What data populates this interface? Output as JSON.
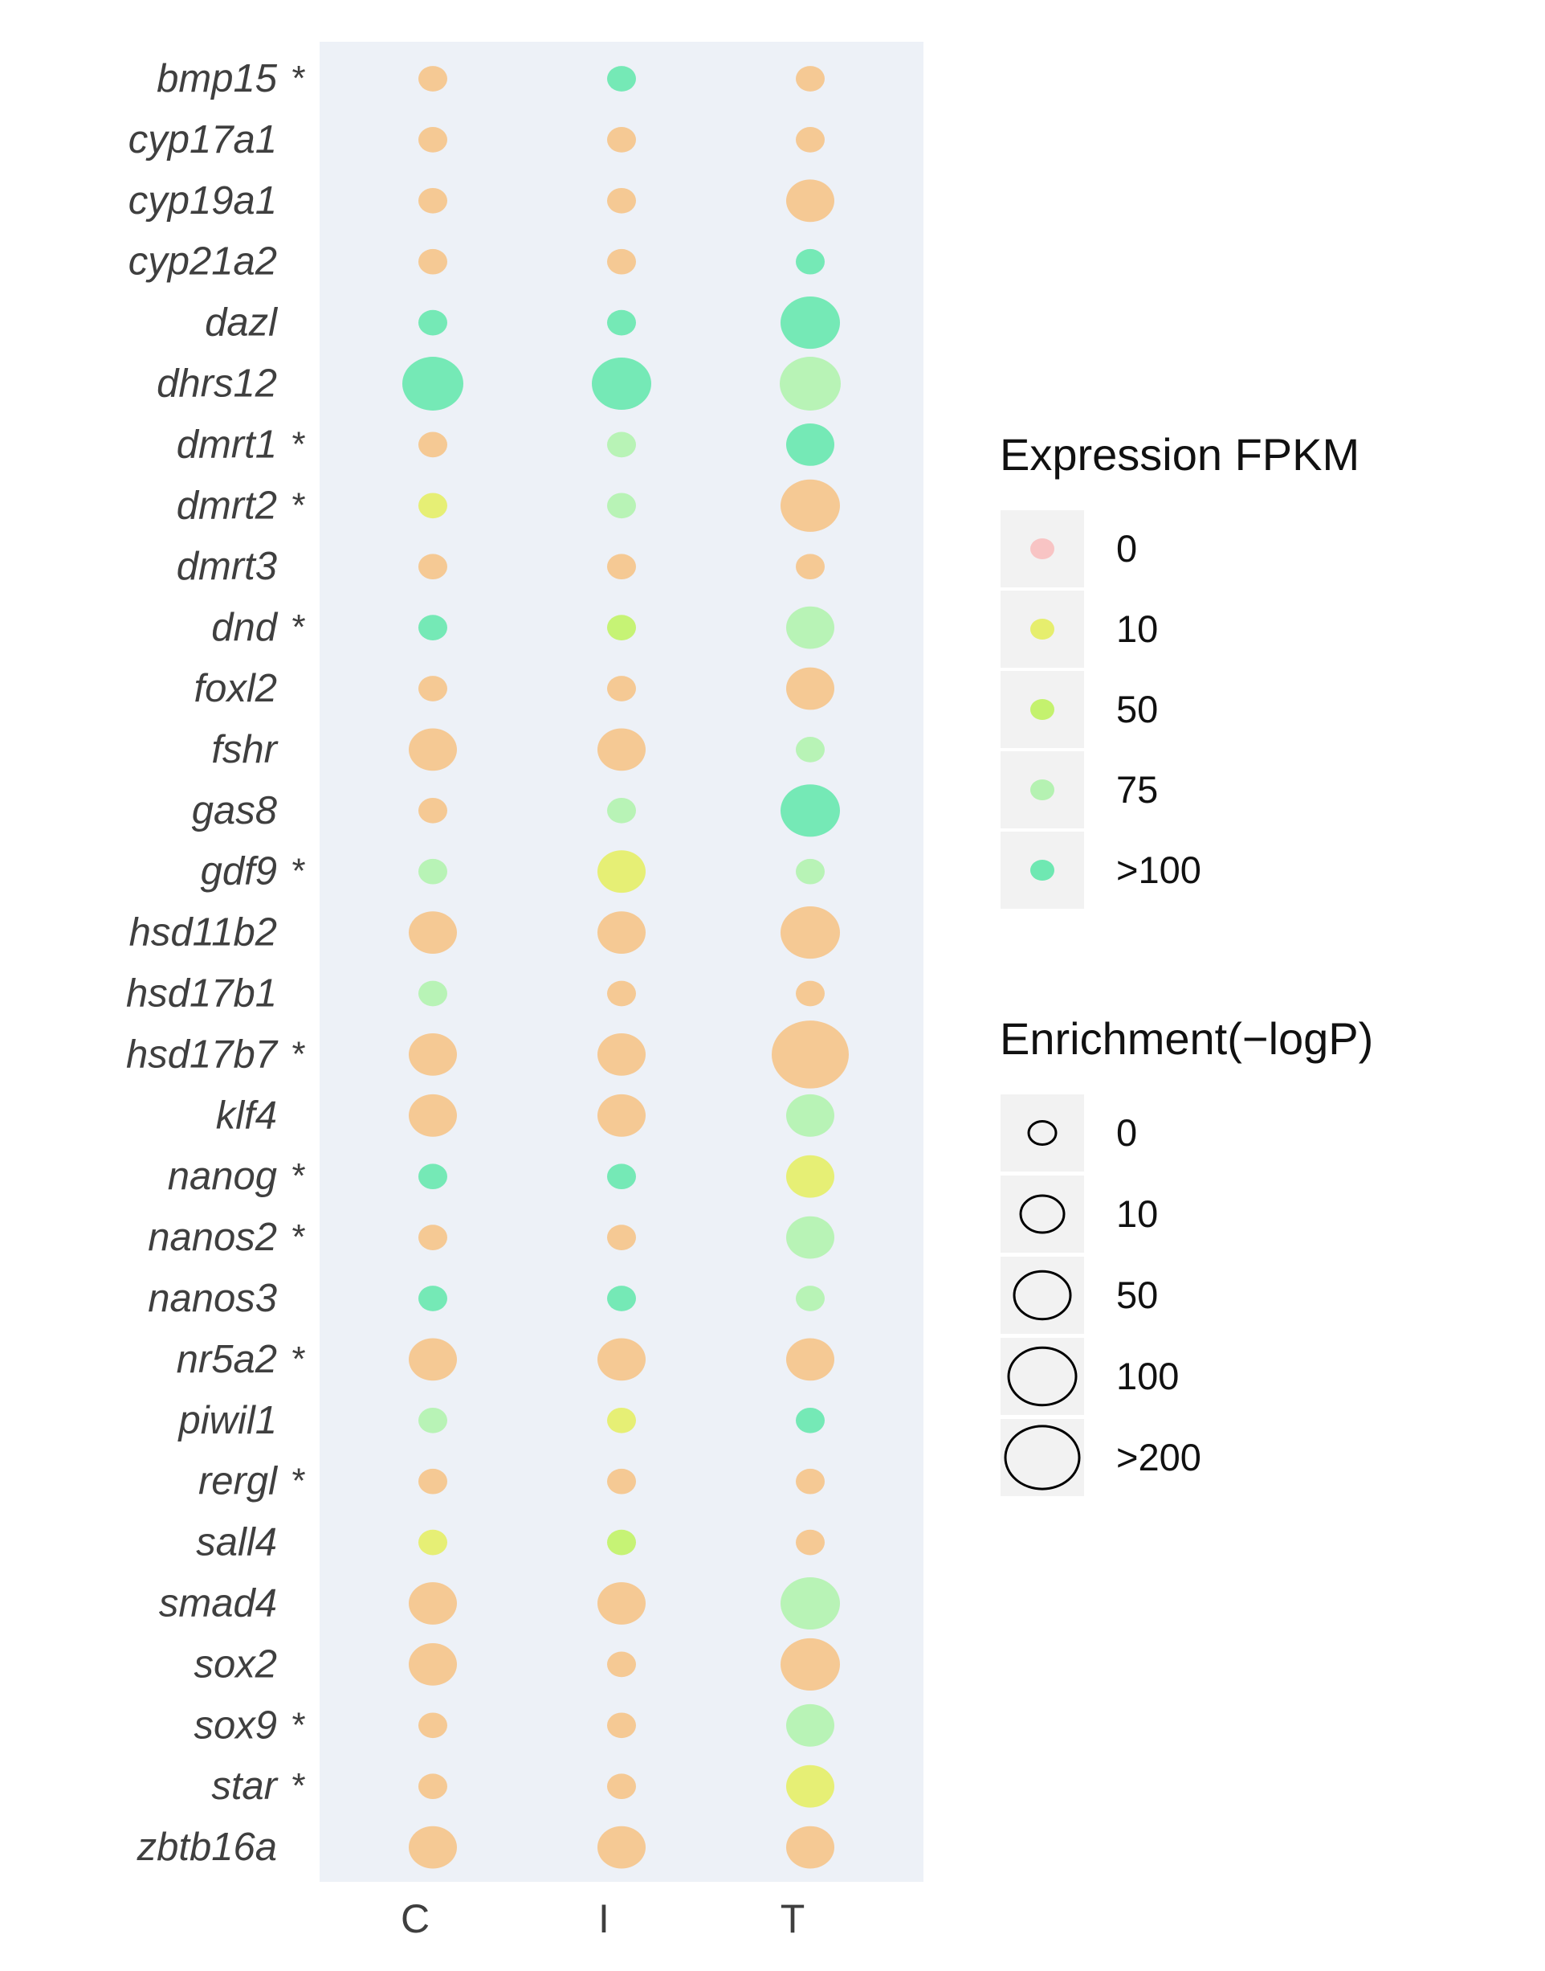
{
  "chart_data": {
    "type": "scatter",
    "subtype": "dot-plot",
    "x_categories": [
      "C",
      "I",
      "T"
    ],
    "genes": [
      {
        "name": "bmp15",
        "marked": true
      },
      {
        "name": "cyp17a1",
        "marked": false
      },
      {
        "name": "cyp19a1",
        "marked": false
      },
      {
        "name": "cyp21a2",
        "marked": false
      },
      {
        "name": "dazl",
        "marked": false
      },
      {
        "name": "dhrs12",
        "marked": false
      },
      {
        "name": "dmrt1",
        "marked": true
      },
      {
        "name": "dmrt2",
        "marked": true
      },
      {
        "name": "dmrt3",
        "marked": false
      },
      {
        "name": "dnd",
        "marked": true
      },
      {
        "name": "foxl2",
        "marked": false
      },
      {
        "name": "fshr",
        "marked": false
      },
      {
        "name": "gas8",
        "marked": false
      },
      {
        "name": "gdf9",
        "marked": true
      },
      {
        "name": "hsd11b2",
        "marked": false
      },
      {
        "name": "hsd17b1",
        "marked": false
      },
      {
        "name": "hsd17b7",
        "marked": true
      },
      {
        "name": "klf4",
        "marked": false
      },
      {
        "name": "nanog",
        "marked": true
      },
      {
        "name": "nanos2",
        "marked": true
      },
      {
        "name": "nanos3",
        "marked": false
      },
      {
        "name": "nr5a2",
        "marked": true
      },
      {
        "name": "piwil1",
        "marked": false
      },
      {
        "name": "rergl",
        "marked": true
      },
      {
        "name": "sall4",
        "marked": false
      },
      {
        "name": "smad4",
        "marked": false
      },
      {
        "name": "sox2",
        "marked": false
      },
      {
        "name": "sox9",
        "marked": true
      },
      {
        "name": "star",
        "marked": true
      },
      {
        "name": "zbtb16a",
        "marked": false
      }
    ],
    "marker_symbol": "*",
    "expression_fpkm": [
      [
        5,
        150,
        5
      ],
      [
        5,
        5,
        5
      ],
      [
        5,
        5,
        5
      ],
      [
        5,
        5,
        150
      ],
      [
        150,
        150,
        150
      ],
      [
        150,
        150,
        75
      ],
      [
        5,
        75,
        150
      ],
      [
        10,
        75,
        5
      ],
      [
        5,
        5,
        5
      ],
      [
        150,
        50,
        75
      ],
      [
        5,
        5,
        5
      ],
      [
        5,
        5,
        75
      ],
      [
        5,
        75,
        150
      ],
      [
        75,
        10,
        75
      ],
      [
        5,
        5,
        5
      ],
      [
        75,
        5,
        5
      ],
      [
        5,
        5,
        5
      ],
      [
        5,
        5,
        75
      ],
      [
        150,
        150,
        10
      ],
      [
        5,
        5,
        75
      ],
      [
        150,
        150,
        75
      ],
      [
        5,
        5,
        5
      ],
      [
        75,
        10,
        150
      ],
      [
        5,
        5,
        5
      ],
      [
        10,
        50,
        5
      ],
      [
        5,
        5,
        75
      ],
      [
        5,
        5,
        5
      ],
      [
        5,
        5,
        75
      ],
      [
        5,
        5,
        10
      ],
      [
        5,
        5,
        5
      ]
    ],
    "enrichment_neglogp": [
      [
        10,
        10,
        10
      ],
      [
        10,
        10,
        10
      ],
      [
        10,
        10,
        50
      ],
      [
        10,
        10,
        10
      ],
      [
        10,
        10,
        100
      ],
      [
        200,
        100,
        200
      ],
      [
        10,
        10,
        50
      ],
      [
        10,
        10,
        100
      ],
      [
        10,
        10,
        10
      ],
      [
        10,
        10,
        50
      ],
      [
        10,
        10,
        50
      ],
      [
        50,
        50,
        10
      ],
      [
        10,
        10,
        100
      ],
      [
        10,
        50,
        10
      ],
      [
        50,
        50,
        100
      ],
      [
        10,
        10,
        10
      ],
      [
        50,
        50,
        300
      ],
      [
        50,
        50,
        50
      ],
      [
        10,
        10,
        50
      ],
      [
        10,
        10,
        50
      ],
      [
        10,
        10,
        10
      ],
      [
        50,
        50,
        50
      ],
      [
        10,
        10,
        10
      ],
      [
        10,
        10,
        10
      ],
      [
        10,
        10,
        10
      ],
      [
        50,
        50,
        100
      ],
      [
        50,
        10,
        100
      ],
      [
        10,
        10,
        50
      ],
      [
        10,
        10,
        50
      ],
      [
        50,
        50,
        50
      ]
    ],
    "legend_color": {
      "title": "Expression FPKM",
      "items": [
        {
          "label": "0",
          "color": "#f8c4c4"
        },
        {
          "label": "10",
          "color": "#e6ee6e"
        },
        {
          "label": "50",
          "color": "#c4f26e"
        },
        {
          "label": "75",
          "color": "#b5f2b2"
        },
        {
          "label": ">100",
          "color": "#6fe8b2"
        }
      ]
    },
    "legend_size": {
      "title": "Enrichment(−logP)",
      "items": [
        {
          "label": "0",
          "value": 0
        },
        {
          "label": "10",
          "value": 10
        },
        {
          "label": "50",
          "value": 50
        },
        {
          "label": "100",
          "value": 100
        },
        {
          "label": ">200",
          "value": 200
        }
      ]
    },
    "low_expression_color": "#f6c68e",
    "panel_background": "#edf1f7",
    "legend_key_background": "#f2f2f2",
    "legend_placement": "right",
    "grid": false
  }
}
